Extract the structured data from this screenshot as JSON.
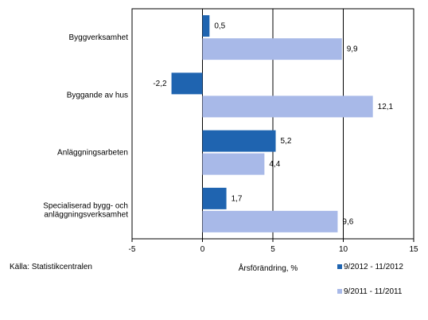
{
  "chart_data": {
    "type": "bar",
    "orientation": "horizontal",
    "categories": [
      [
        "Byggverksamhet"
      ],
      [
        "Byggande av hus"
      ],
      [
        "Anläggningsarbeten"
      ],
      [
        "Specialiserad bygg- och",
        "anläggningsverksamhet"
      ]
    ],
    "series": [
      {
        "name": "9/2012 - 11/2012",
        "color": "#1f64b0",
        "values": [
          0.5,
          -2.2,
          5.2,
          1.7
        ],
        "labels": [
          "0,5",
          "-2,2",
          "5,2",
          "1,7"
        ]
      },
      {
        "name": "9/2011 - 11/2011",
        "color": "#a8b9e8",
        "values": [
          9.9,
          12.1,
          4.4,
          9.6
        ],
        "labels": [
          "9,9",
          "12,1",
          "4,4",
          "9,6"
        ]
      }
    ],
    "xlabel": "Årsförändring, %",
    "xlim": [
      -5,
      15
    ],
    "ticks": [
      -5,
      0,
      5,
      10,
      15
    ],
    "tick_labels": [
      "-5",
      "0",
      "5",
      "10",
      "15"
    ],
    "grid": true,
    "legend_position": "bottom-right"
  },
  "source": "Källa: Statistikcentralen"
}
